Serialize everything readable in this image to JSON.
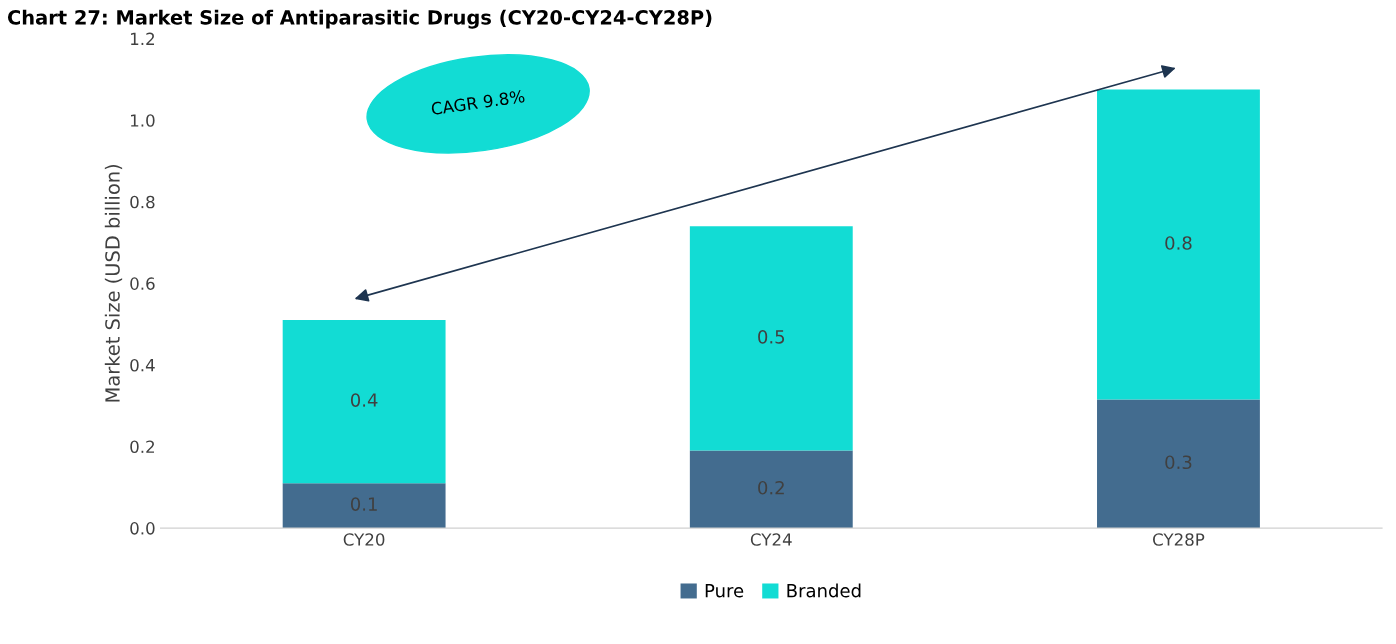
{
  "chart_data": {
    "type": "bar",
    "title": "Chart 27: Market Size of Antiparasitic Drugs (CY20-CY24-CY28P)",
    "ylabel": "Market Size (USD billion)",
    "categories": [
      "CY20",
      "CY24",
      "CY28P"
    ],
    "series": [
      {
        "name": "Pure",
        "color": "#436c8f",
        "values": [
          0.11,
          0.19,
          0.315
        ],
        "value_labels": [
          "0.1",
          "0.2",
          "0.3"
        ]
      },
      {
        "name": "Branded",
        "color": "#12dcd4",
        "values": [
          0.4,
          0.55,
          0.76
        ],
        "value_labels": [
          "0.4",
          "0.5",
          "0.8"
        ]
      }
    ],
    "stacked": true,
    "ylim": [
      0,
      1.2
    ],
    "yticks": [
      {
        "value": 0,
        "label": "0.0"
      },
      0.2,
      0.4,
      0.6,
      {
        "value": 0.8,
        "label": "0.8"
      },
      {
        "value": 1.0,
        "label": "1.0"
      },
      1.2
    ],
    "grid": false,
    "legend": "bottom",
    "annotations": [
      "CAGR 9.8%"
    ]
  }
}
